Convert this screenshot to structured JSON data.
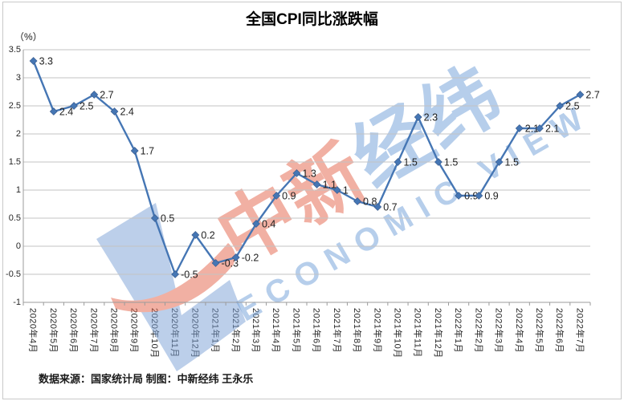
{
  "page": {
    "title": "全国CPI同比涨跌幅",
    "unit_label": "（%）",
    "footer_source": "数据来源：国家统计局 制图：中新经纬 王永乐"
  },
  "watermark": {
    "cn_red": "中新",
    "cn_blue": "经纬",
    "en_caption": "ECONOMIC VIEW"
  },
  "colors": {
    "line": "#4576B4",
    "marker": "#4576B4",
    "data_label": "#1f1f1f",
    "gridline": "#c3c3c3",
    "axis": "#9b9b9b",
    "watermark_red": "#e5644a",
    "watermark_blue": "#6f9fd8",
    "frame_border": "#c9c9c9"
  },
  "chart_data": {
    "type": "line",
    "title": "全国CPI同比涨跌幅",
    "unit": "（%）",
    "legend": "none",
    "grid": true,
    "ylim": [
      -1,
      3.5
    ],
    "ytick_step": 0.5,
    "yticks": [
      "3.5",
      "3",
      "2.5",
      "2",
      "1.5",
      "1",
      "0.5",
      "0",
      "-0.5",
      "-1"
    ],
    "categories": [
      "2020年4月",
      "2020年5月",
      "2020年6月",
      "2020年7月",
      "2020年8月",
      "2020年9月",
      "2020年10月",
      "2020年11月",
      "2020年12月",
      "2021年1月",
      "2021年2月",
      "2021年3月",
      "2021年4月",
      "2021年5月",
      "2021年6月",
      "2021年7月",
      "2021年8月",
      "2021年9月",
      "2021年10月",
      "2021年11月",
      "2021年12月",
      "2022年1月",
      "2022年2月",
      "2022年3月",
      "2022年4月",
      "2022年5月",
      "2022年6月",
      "2022年7月"
    ],
    "series": [
      {
        "name": "CPI同比涨跌幅(%)",
        "values": [
          3.3,
          2.4,
          2.5,
          2.7,
          2.4,
          1.7,
          0.5,
          -0.5,
          0.2,
          -0.3,
          -0.2,
          0.4,
          0.9,
          1.3,
          1.1,
          1,
          0.8,
          0.7,
          1.5,
          2.3,
          1.5,
          0.9,
          0.9,
          1.5,
          2.1,
          2.1,
          2.5,
          2.7
        ]
      }
    ]
  }
}
